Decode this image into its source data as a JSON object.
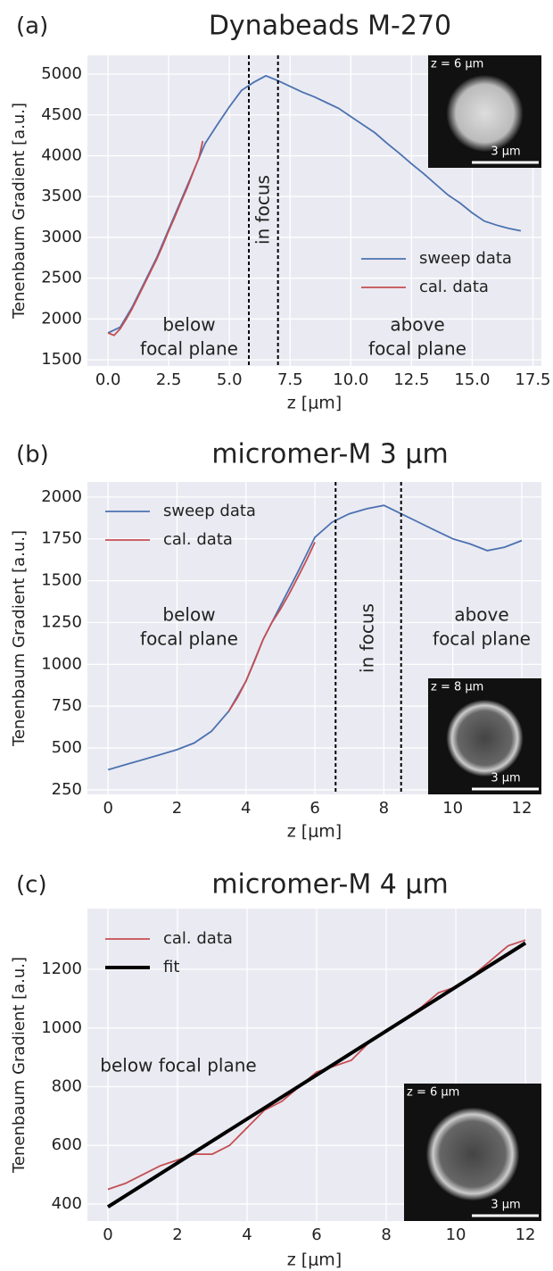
{
  "chart_data": [
    {
      "type": "line",
      "panel_label": "(a)",
      "title": "Dynabeads M-270",
      "x_label": "z [μm]",
      "y_label": "Tenenbaum Gradient [a.u.]",
      "xlim": [
        -0.85,
        17.85
      ],
      "ylim": [
        1425,
        5230
      ],
      "xticks": [
        {
          "value": 0,
          "label": "0.0"
        },
        2.5,
        {
          "value": 5,
          "label": "5.0"
        },
        7.5,
        {
          "value": 10,
          "label": "10.0"
        },
        12.5,
        {
          "value": 15,
          "label": "15.0"
        },
        17.5
      ],
      "yticks": [
        1500,
        2000,
        2500,
        3000,
        3500,
        4000,
        4500,
        5000
      ],
      "grid": true,
      "legend": "lower right",
      "focus_bounds": [
        5.8,
        7.0
      ],
      "annotations": [
        [
          "below",
          "focal plane"
        ],
        [
          "above",
          "focal plane"
        ],
        [
          "in focus"
        ]
      ],
      "inset_labels": [
        "z = 6 µm",
        "3 µm"
      ],
      "series": [
        {
          "name": "sweep data",
          "color": "#4c72b0",
          "x": [
            0,
            0.5,
            1,
            1.5,
            2,
            2.5,
            3,
            3.5,
            4,
            4.5,
            5,
            5.5,
            6,
            6.5,
            7,
            7.5,
            8,
            8.5,
            9,
            9.5,
            10,
            10.5,
            11,
            11.5,
            12,
            12.5,
            13,
            13.5,
            14,
            14.5,
            15,
            15.5,
            16,
            16.5,
            17
          ],
          "values": [
            1830,
            1900,
            2150,
            2450,
            2750,
            3100,
            3450,
            3800,
            4150,
            4380,
            4600,
            4800,
            4900,
            4980,
            4920,
            4850,
            4780,
            4720,
            4650,
            4580,
            4480,
            4380,
            4280,
            4150,
            4030,
            3900,
            3780,
            3650,
            3520,
            3420,
            3300,
            3200,
            3150,
            3110,
            3080
          ]
        },
        {
          "name": "cal. data",
          "color": "#c44e52",
          "x": [
            0,
            0.25,
            0.5,
            0.75,
            1,
            1.25,
            1.5,
            1.75,
            2,
            2.25,
            2.5,
            2.75,
            3,
            3.25,
            3.5,
            3.75,
            3.9
          ],
          "values": [
            1830,
            1800,
            1880,
            2000,
            2130,
            2280,
            2430,
            2580,
            2730,
            2900,
            3080,
            3250,
            3430,
            3600,
            3790,
            3980,
            4180
          ]
        }
      ]
    },
    {
      "type": "line",
      "panel_label": "(b)",
      "title": "micromer-M 3 μm",
      "x_label": "z [μm]",
      "y_label": "Tenenbaum Gradient [a.u.]",
      "xlim": [
        -0.6,
        12.57
      ],
      "ylim": [
        223,
        2090
      ],
      "xticks": [
        0,
        2,
        4,
        6,
        8,
        10,
        12
      ],
      "yticks": [
        250,
        500,
        750,
        1000,
        1250,
        1500,
        1750,
        2000
      ],
      "grid": true,
      "legend": "upper left",
      "focus_bounds": [
        6.6,
        8.5
      ],
      "annotations": [
        [
          "below",
          "focal plane"
        ],
        [
          "above",
          "focal plane"
        ],
        [
          "in focus"
        ]
      ],
      "inset_labels": [
        "z = 8 µm",
        "3 µm"
      ],
      "series": [
        {
          "name": "sweep data",
          "color": "#4c72b0",
          "x": [
            0,
            0.5,
            1,
            1.5,
            2,
            2.5,
            3,
            3.5,
            4,
            4.5,
            5,
            5.5,
            6,
            6.5,
            7,
            7.5,
            8,
            8.5,
            9,
            9.5,
            10,
            10.5,
            11,
            11.5,
            12
          ],
          "values": [
            370,
            400,
            430,
            460,
            490,
            530,
            600,
            720,
            900,
            1150,
            1350,
            1550,
            1760,
            1850,
            1900,
            1930,
            1950,
            1900,
            1850,
            1800,
            1750,
            1720,
            1680,
            1700,
            1740
          ]
        },
        {
          "name": "cal. data",
          "color": "#c44e52",
          "x": [
            3.5,
            3.75,
            4,
            4.25,
            4.5,
            4.75,
            5,
            5.25,
            5.5,
            5.75,
            6
          ],
          "values": [
            720,
            800,
            900,
            1020,
            1150,
            1250,
            1330,
            1420,
            1520,
            1620,
            1730
          ]
        }
      ]
    },
    {
      "type": "line",
      "panel_label": "(c)",
      "title": "micromer-M 4 μm",
      "x_label": "z [μm]",
      "y_label": "Tenenbaum Gradient [a.u.]",
      "xlim": [
        -0.59,
        12.46
      ],
      "ylim": [
        342,
        1407
      ],
      "xticks": [
        0,
        2,
        4,
        6,
        8,
        10,
        12
      ],
      "yticks": [
        400,
        600,
        800,
        1000,
        1200
      ],
      "grid": true,
      "legend": "upper left",
      "annotations": [
        [
          "below focal plane"
        ]
      ],
      "inset_labels": [
        "z = 6 µm",
        "3 µm"
      ],
      "series": [
        {
          "name": "cal. data",
          "color": "#c44e52",
          "x": [
            0,
            0.5,
            1,
            1.5,
            2,
            2.5,
            3,
            3.5,
            4,
            4.5,
            5,
            5.5,
            6,
            6.5,
            7,
            7.5,
            8,
            8.5,
            9,
            9.5,
            10,
            10.5,
            11,
            11.5,
            12
          ],
          "values": [
            450,
            470,
            500,
            530,
            550,
            570,
            570,
            600,
            660,
            720,
            750,
            800,
            850,
            870,
            890,
            950,
            990,
            1030,
            1070,
            1120,
            1140,
            1180,
            1230,
            1280,
            1300
          ]
        },
        {
          "name": "fit",
          "color": "#000000",
          "x": [
            0,
            12
          ],
          "values": [
            390,
            1290
          ]
        }
      ]
    }
  ]
}
